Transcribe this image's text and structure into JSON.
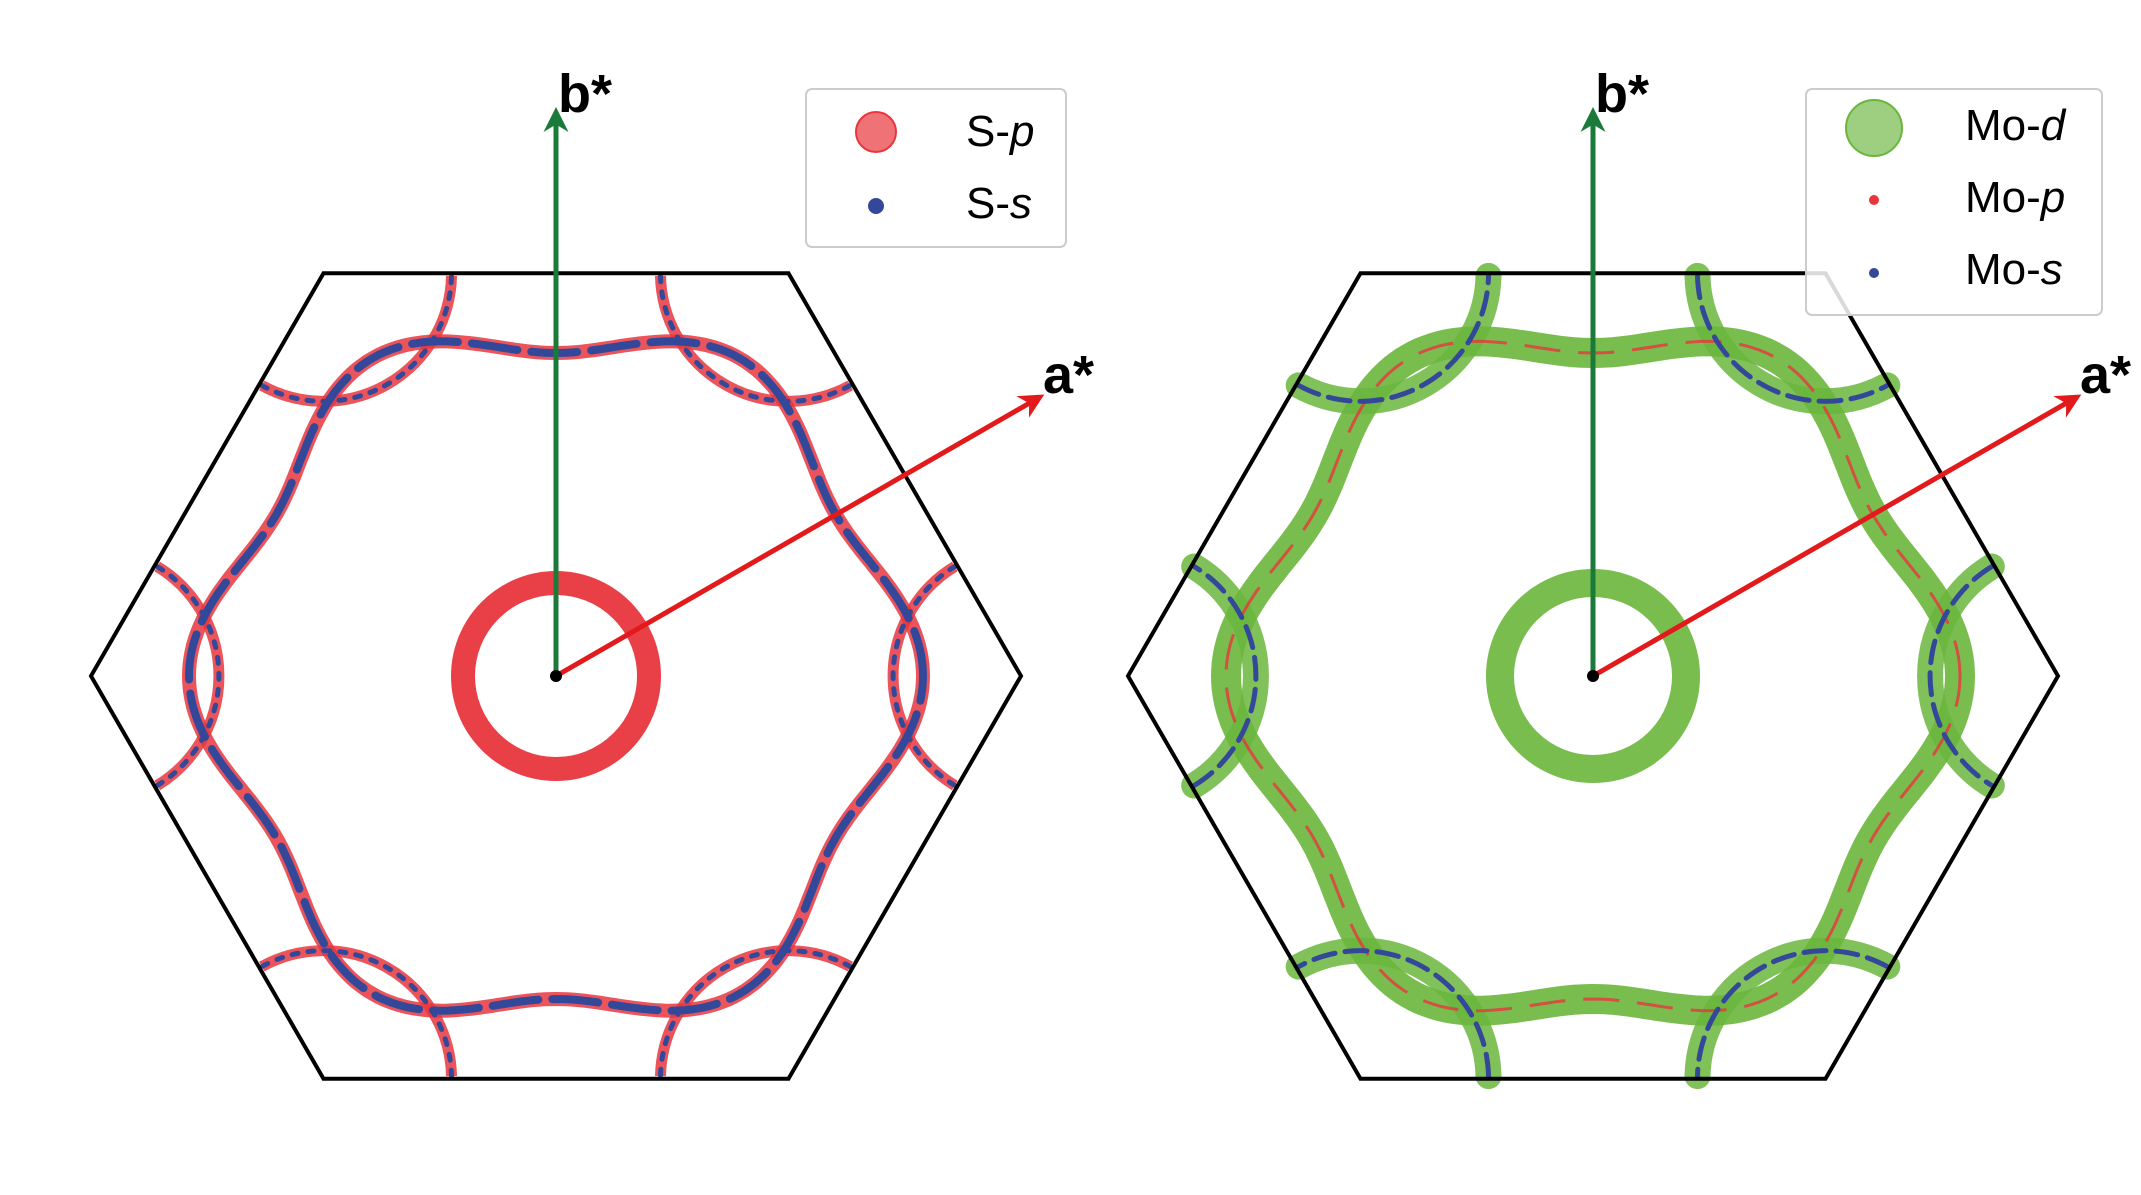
{
  "panels": [
    {
      "id": "left",
      "axes": {
        "b_label": "b*",
        "a_label": "a*",
        "b_color": "#1a7a3a",
        "a_color": "#e31a1c"
      },
      "orbitals": [
        {
          "name": "S-p",
          "prefix": "S-",
          "suffix": "p",
          "color": "#e8363d",
          "weight": "large"
        },
        {
          "name": "S-s",
          "prefix": "S-",
          "suffix": "s",
          "color": "#34489a",
          "weight": "small"
        }
      ]
    },
    {
      "id": "right",
      "axes": {
        "b_label": "b*",
        "a_label": "a*",
        "b_color": "#1a7a3a",
        "a_color": "#e31a1c"
      },
      "orbitals": [
        {
          "name": "Mo-d",
          "prefix": "Mo-",
          "suffix": "d",
          "color": "#6ab63c",
          "weight": "large"
        },
        {
          "name": "Mo-p",
          "prefix": "Mo-",
          "suffix": "p",
          "color": "#e8363d",
          "weight": "small"
        },
        {
          "name": "Mo-s",
          "prefix": "Mo-",
          "suffix": "s",
          "color": "#34489a",
          "weight": "small"
        }
      ]
    }
  ],
  "colors": {
    "hexagon": "#000000",
    "background": "#ffffff"
  }
}
